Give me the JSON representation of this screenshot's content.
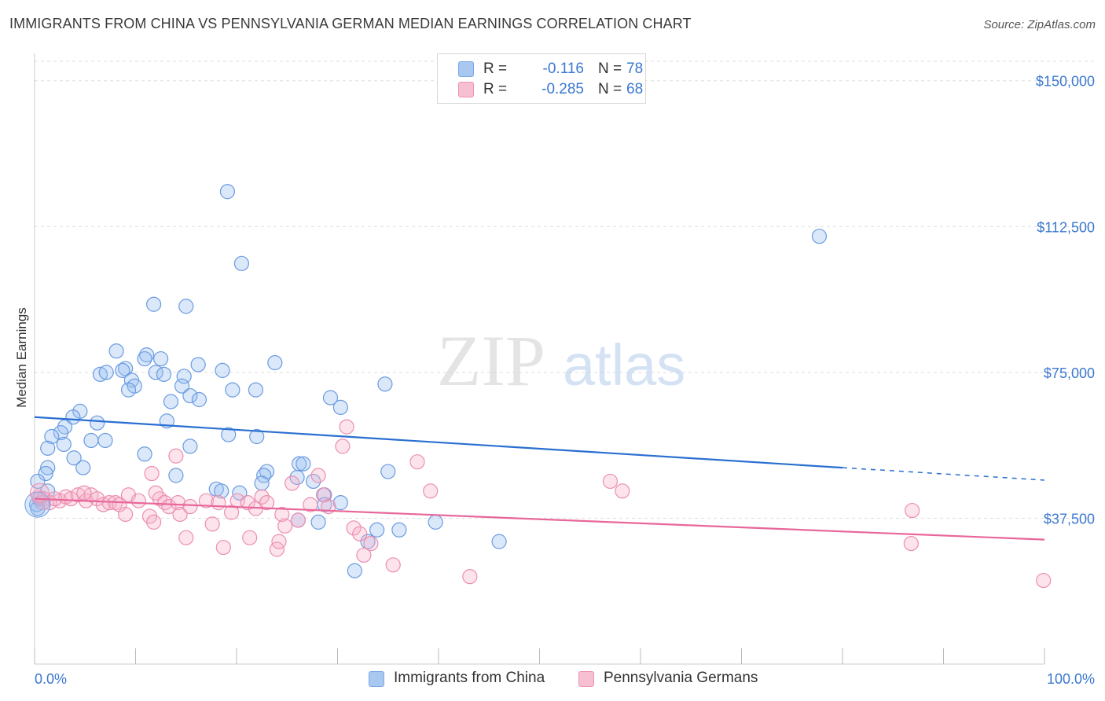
{
  "title": "IMMIGRANTS FROM CHINA VS PENNSYLVANIA GERMAN MEDIAN EARNINGS CORRELATION CHART",
  "source": "Source: ZipAtlas.com",
  "watermark": {
    "zip": "ZIP",
    "atlas": "atlas"
  },
  "legend_stats": [
    {
      "r_label": "R =",
      "r_value": "-0.116",
      "n_label": "N =",
      "n_value": "78",
      "color": "#a9c8f0",
      "border": "#7aa6e6"
    },
    {
      "r_label": "R =",
      "r_value": "-0.285",
      "n_label": "N =",
      "n_value": "68",
      "color": "#f7bfd2",
      "border": "#ec93b1"
    }
  ],
  "colors": {
    "china_fill": "rgba(150,190,240,0.35)",
    "china_stroke": "#6a9be0",
    "china_line": "#2a6fd0",
    "pg_fill": "rgba(245,175,200,0.35)",
    "pg_stroke": "#ec8fb0",
    "pg_line": "#e8679a",
    "grid": "#dddddd",
    "axis_label": "#3b78d0"
  },
  "chart_data": {
    "type": "scatter",
    "title": "IMMIGRANTS FROM CHINA VS PENNSYLVANIA GERMAN MEDIAN EARNINGS CORRELATION CHART",
    "xlabel": "",
    "ylabel": "Median Earnings",
    "xlim": [
      0,
      100
    ],
    "ylim": [
      0,
      155000
    ],
    "x_tick_labels": [
      "0.0%",
      "100.0%"
    ],
    "y_ticks": [
      37500,
      75000,
      112500,
      150000
    ],
    "y_tick_labels": [
      "$37,500",
      "$75,000",
      "$112,500",
      "$150,000"
    ],
    "grid": true,
    "legend_position": "bottom",
    "series": [
      {
        "name": "Immigrants from China",
        "trend": {
          "x0": 0,
          "y0": 63500,
          "x1": 80,
          "y1": 50500,
          "dash_to_x": 100,
          "dash_to_y": 47300
        },
        "points": [
          [
            19.1,
            121500
          ],
          [
            20.5,
            103000
          ],
          [
            11.8,
            92500
          ],
          [
            15.0,
            92000
          ],
          [
            77.7,
            110000
          ],
          [
            8.1,
            80500
          ],
          [
            11.1,
            79500
          ],
          [
            10.9,
            78500
          ],
          [
            12.5,
            78500
          ],
          [
            16.2,
            77000
          ],
          [
            23.8,
            77500
          ],
          [
            9.0,
            76000
          ],
          [
            8.7,
            75500
          ],
          [
            6.5,
            74500
          ],
          [
            7.1,
            75000
          ],
          [
            12.0,
            75000
          ],
          [
            12.8,
            74500
          ],
          [
            14.8,
            74000
          ],
          [
            18.6,
            75500
          ],
          [
            9.6,
            73000
          ],
          [
            9.9,
            71500
          ],
          [
            9.3,
            70500
          ],
          [
            14.6,
            71500
          ],
          [
            19.6,
            70500
          ],
          [
            21.9,
            70500
          ],
          [
            34.7,
            72000
          ],
          [
            29.3,
            68500
          ],
          [
            15.4,
            69000
          ],
          [
            16.3,
            68000
          ],
          [
            13.5,
            67500
          ],
          [
            30.3,
            66000
          ],
          [
            4.5,
            65000
          ],
          [
            3.8,
            63500
          ],
          [
            6.2,
            62000
          ],
          [
            13.1,
            62500
          ],
          [
            3.0,
            61000
          ],
          [
            2.6,
            59500
          ],
          [
            1.7,
            58500
          ],
          [
            19.2,
            59000
          ],
          [
            22.0,
            58500
          ],
          [
            5.6,
            57500
          ],
          [
            7.0,
            57500
          ],
          [
            2.9,
            56500
          ],
          [
            1.3,
            55500
          ],
          [
            15.4,
            56000
          ],
          [
            10.9,
            54000
          ],
          [
            3.9,
            53000
          ],
          [
            1.3,
            50500
          ],
          [
            4.8,
            50500
          ],
          [
            23.0,
            49500
          ],
          [
            26.2,
            51500
          ],
          [
            26.6,
            51500
          ],
          [
            35.0,
            49500
          ],
          [
            1.1,
            49000
          ],
          [
            14.0,
            48500
          ],
          [
            22.7,
            48500
          ],
          [
            26.0,
            48000
          ],
          [
            22.5,
            46500
          ],
          [
            27.6,
            47000
          ],
          [
            0.3,
            47000
          ],
          [
            18.0,
            45000
          ],
          [
            18.5,
            44500
          ],
          [
            20.3,
            44000
          ],
          [
            28.7,
            43500
          ],
          [
            28.7,
            41000
          ],
          [
            30.3,
            41500
          ],
          [
            0.2,
            41000
          ],
          [
            0.3,
            40000
          ],
          [
            26.1,
            37000
          ],
          [
            28.1,
            36500
          ],
          [
            33.9,
            34500
          ],
          [
            36.1,
            34500
          ],
          [
            39.7,
            36500
          ],
          [
            33.0,
            31500
          ],
          [
            46.0,
            31500
          ],
          [
            31.7,
            24000
          ],
          [
            1.3,
            44500
          ],
          [
            0.5,
            42500
          ]
        ]
      },
      {
        "name": "Pennsylvania Germans",
        "trend": {
          "x0": 0,
          "y0": 42500,
          "x1": 100,
          "y1": 32000
        },
        "points": [
          [
            0.4,
            43000
          ],
          [
            0.9,
            42500
          ],
          [
            1.5,
            41500
          ],
          [
            2.5,
            42000
          ],
          [
            3.1,
            43000
          ],
          [
            3.6,
            42500
          ],
          [
            4.3,
            43500
          ],
          [
            5.1,
            42000
          ],
          [
            5.6,
            43500
          ],
          [
            6.2,
            42500
          ],
          [
            6.8,
            41000
          ],
          [
            7.4,
            41500
          ],
          [
            8.0,
            41500
          ],
          [
            8.4,
            41000
          ],
          [
            9.3,
            43500
          ],
          [
            9.0,
            38500
          ],
          [
            10.3,
            42000
          ],
          [
            11.4,
            38000
          ],
          [
            11.8,
            36500
          ],
          [
            12.4,
            42500
          ],
          [
            12.9,
            41500
          ],
          [
            13.3,
            40500
          ],
          [
            14.2,
            41500
          ],
          [
            14.4,
            38500
          ],
          [
            15.4,
            40500
          ],
          [
            15.0,
            32500
          ],
          [
            17.0,
            42000
          ],
          [
            17.6,
            36000
          ],
          [
            18.2,
            41500
          ],
          [
            18.7,
            30000
          ],
          [
            19.5,
            39000
          ],
          [
            20.1,
            42000
          ],
          [
            21.1,
            41500
          ],
          [
            21.3,
            32500
          ],
          [
            21.9,
            40000
          ],
          [
            22.5,
            43000
          ],
          [
            23.0,
            41500
          ],
          [
            24.5,
            38500
          ],
          [
            24.8,
            35500
          ],
          [
            25.5,
            46500
          ],
          [
            26.1,
            37000
          ],
          [
            27.3,
            41000
          ],
          [
            28.6,
            43500
          ],
          [
            29.1,
            40500
          ],
          [
            24.0,
            29500
          ],
          [
            24.2,
            31500
          ],
          [
            30.9,
            61000
          ],
          [
            30.5,
            56000
          ],
          [
            28.1,
            48500
          ],
          [
            31.6,
            35000
          ],
          [
            32.2,
            33500
          ],
          [
            32.6,
            28000
          ],
          [
            33.3,
            31000
          ],
          [
            35.5,
            25500
          ],
          [
            37.9,
            52000
          ],
          [
            39.2,
            44500
          ],
          [
            43.1,
            22500
          ],
          [
            57.0,
            47000
          ],
          [
            58.2,
            44500
          ],
          [
            86.8,
            31000
          ],
          [
            86.9,
            39500
          ],
          [
            99.9,
            21500
          ],
          [
            14.0,
            53500
          ],
          [
            11.6,
            49000
          ],
          [
            12.0,
            44000
          ],
          [
            4.9,
            44000
          ],
          [
            2.0,
            42500
          ],
          [
            0.8,
            41500
          ]
        ]
      }
    ]
  }
}
